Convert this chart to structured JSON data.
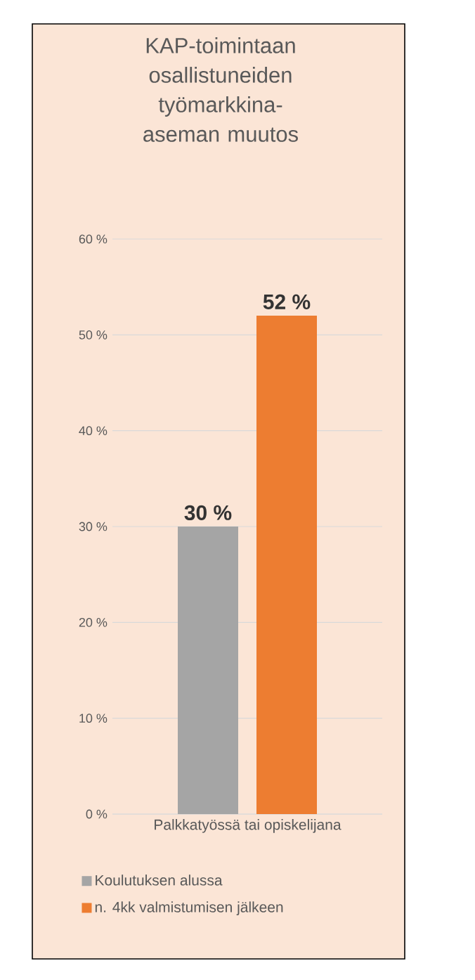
{
  "chart_data": {
    "type": "bar",
    "title": "KAP-toimintaan osallistuneiden työmarkkina-aseman muutos",
    "categories": [
      "Palkkatyössä tai opiskelijana"
    ],
    "series": [
      {
        "name": "Koulutuksen alussa",
        "color": "#a5a5a5",
        "values": [
          30
        ],
        "value_labels": [
          "30 %"
        ]
      },
      {
        "name": "n. 4kk valmistumisen jälkeen",
        "color": "#ed7d31",
        "values": [
          52
        ],
        "value_labels": [
          "52 %"
        ]
      }
    ],
    "ylim": [
      0,
      60
    ],
    "yticks": [
      {
        "value": 0,
        "label": "0 %"
      },
      {
        "value": 10,
        "label": "10 %"
      },
      {
        "value": 20,
        "label": "20 %"
      },
      {
        "value": 30,
        "label": "30 %"
      },
      {
        "value": 40,
        "label": "40 %"
      },
      {
        "value": 50,
        "label": "50 %"
      },
      {
        "value": 60,
        "label": "60 %"
      }
    ],
    "grid": "y",
    "legend": "bottom"
  }
}
